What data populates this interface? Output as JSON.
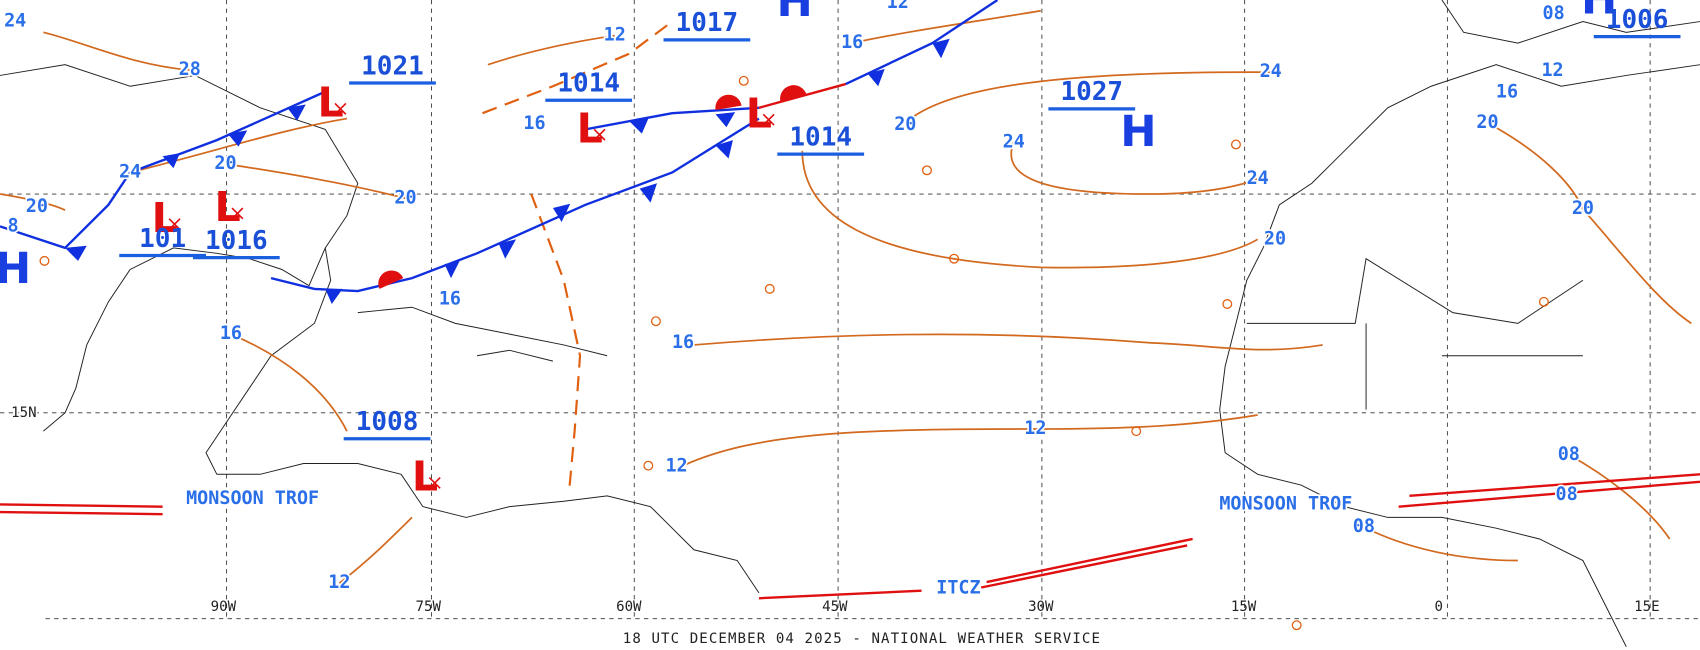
{
  "highs": [
    "H",
    "H",
    "H",
    "H"
  ],
  "lows": [
    "L",
    "L",
    "L",
    "L",
    "L",
    "L"
  ],
  "pressure_labels": [
    "1017",
    "1021",
    "1014",
    "1014",
    "1027",
    "1016",
    "101",
    "1008",
    "1006"
  ],
  "isobar_labels": [
    "12",
    "16",
    "12",
    "24",
    "28",
    "20",
    "20",
    "20",
    "16",
    "16",
    "16",
    "20",
    "24",
    "24",
    "24",
    "20",
    "12",
    "12",
    "16",
    "12",
    "08",
    "12",
    "16",
    "20",
    "20",
    "08",
    "08",
    "08",
    "8",
    "24"
  ],
  "feature_labels": [
    "MONSOON TROF",
    "MONSOON TROF",
    "ITCZ"
  ],
  "longitude_labels": [
    "90W",
    "75W",
    "60W",
    "45W",
    "30W",
    "15W",
    "0",
    "15E"
  ],
  "latitude_labels": [
    "15N"
  ],
  "footer": "18 UTC DECEMBER 04 2025 - NATIONAL WEATHER SERVICE"
}
